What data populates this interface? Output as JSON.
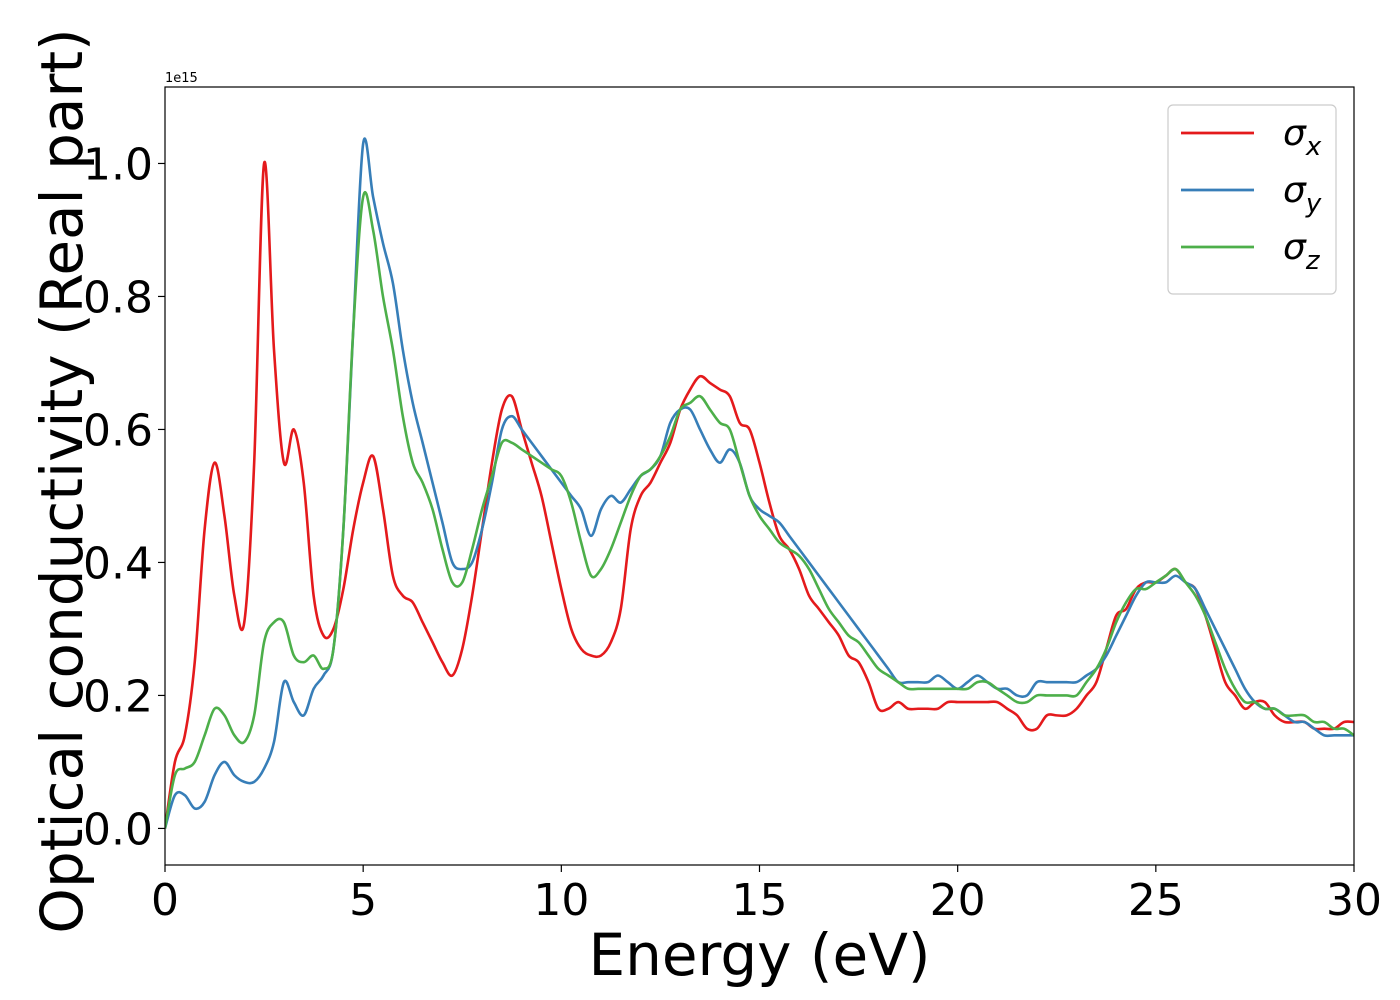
{
  "chart_data": {
    "type": "line",
    "xlabel": "Energy (eV)",
    "ylabel": "Optical conductivity (Real part)",
    "y_offset_label": "1e15",
    "xlim": [
      0,
      30
    ],
    "ylim": [
      -0.055,
      1.115
    ],
    "xticks": [
      0,
      5,
      10,
      15,
      20,
      25,
      30
    ],
    "yticks": [
      0.0,
      0.2,
      0.4,
      0.6,
      0.8,
      1.0
    ],
    "xtick_labels": [
      "0",
      "5",
      "10",
      "15",
      "20",
      "25",
      "30"
    ],
    "ytick_labels": [
      "0.0",
      "0.2",
      "0.4",
      "0.6",
      "0.8",
      "1.0"
    ],
    "grid": false,
    "legend_position": "top-right",
    "series": [
      {
        "name": "σx",
        "symbol": "σ",
        "subscript": "x",
        "color": "#e41a1c",
        "x": [
          0,
          0.25,
          0.5,
          0.75,
          1.0,
          1.25,
          1.5,
          1.75,
          2.0,
          2.25,
          2.5,
          2.75,
          3.0,
          3.25,
          3.5,
          3.75,
          4.0,
          4.25,
          4.5,
          4.75,
          5.0,
          5.25,
          5.5,
          5.75,
          6.0,
          6.25,
          6.5,
          6.75,
          7.0,
          7.25,
          7.5,
          7.75,
          8.0,
          8.25,
          8.5,
          8.75,
          9.0,
          9.25,
          9.5,
          9.75,
          10.0,
          10.25,
          10.5,
          10.75,
          11.0,
          11.25,
          11.5,
          11.75,
          12.0,
          12.25,
          12.5,
          12.75,
          13.0,
          13.25,
          13.5,
          13.75,
          14.0,
          14.25,
          14.5,
          14.75,
          15.0,
          15.25,
          15.5,
          15.75,
          16.0,
          16.25,
          16.5,
          16.75,
          17.0,
          17.25,
          17.5,
          17.75,
          18.0,
          18.25,
          18.5,
          18.75,
          19.0,
          19.25,
          19.5,
          19.75,
          20.0,
          20.25,
          20.5,
          20.75,
          21.0,
          21.25,
          21.5,
          21.75,
          22.0,
          22.25,
          22.5,
          22.75,
          23.0,
          23.25,
          23.5,
          23.75,
          24.0,
          24.25,
          24.5,
          24.75,
          25.0,
          25.25,
          25.5,
          25.75,
          26.0,
          26.25,
          26.5,
          26.75,
          27.0,
          27.25,
          27.5,
          27.75,
          28.0,
          28.25,
          28.5,
          28.75,
          29.0,
          29.25,
          29.5,
          29.75,
          30.0
        ],
        "values": [
          0.0,
          0.1,
          0.14,
          0.25,
          0.45,
          0.55,
          0.47,
          0.35,
          0.31,
          0.55,
          1.0,
          0.72,
          0.55,
          0.6,
          0.52,
          0.35,
          0.29,
          0.3,
          0.36,
          0.45,
          0.52,
          0.56,
          0.48,
          0.38,
          0.35,
          0.34,
          0.31,
          0.28,
          0.25,
          0.23,
          0.27,
          0.35,
          0.45,
          0.55,
          0.63,
          0.65,
          0.6,
          0.55,
          0.5,
          0.43,
          0.36,
          0.3,
          0.27,
          0.26,
          0.26,
          0.28,
          0.33,
          0.45,
          0.5,
          0.52,
          0.55,
          0.58,
          0.63,
          0.66,
          0.68,
          0.67,
          0.66,
          0.65,
          0.61,
          0.6,
          0.55,
          0.49,
          0.44,
          0.42,
          0.39,
          0.35,
          0.33,
          0.31,
          0.29,
          0.26,
          0.25,
          0.22,
          0.18,
          0.18,
          0.19,
          0.18,
          0.18,
          0.18,
          0.18,
          0.19,
          0.19,
          0.19,
          0.19,
          0.19,
          0.19,
          0.18,
          0.17,
          0.15,
          0.15,
          0.17,
          0.17,
          0.17,
          0.18,
          0.2,
          0.22,
          0.27,
          0.32,
          0.33,
          0.36,
          0.37,
          0.37,
          0.38,
          0.39,
          0.37,
          0.36,
          0.32,
          0.27,
          0.22,
          0.2,
          0.18,
          0.19,
          0.19,
          0.17,
          0.16,
          0.16,
          0.16,
          0.15,
          0.15,
          0.15,
          0.16,
          0.16
        ]
      },
      {
        "name": "σy",
        "symbol": "σ",
        "subscript": "y",
        "color": "#377eb8",
        "x": [
          0,
          0.25,
          0.5,
          0.75,
          1.0,
          1.25,
          1.5,
          1.75,
          2.0,
          2.25,
          2.5,
          2.75,
          3.0,
          3.25,
          3.5,
          3.75,
          4.0,
          4.25,
          4.5,
          4.75,
          5.0,
          5.25,
          5.5,
          5.75,
          6.0,
          6.25,
          6.5,
          6.75,
          7.0,
          7.25,
          7.5,
          7.75,
          8.0,
          8.25,
          8.5,
          8.75,
          9.0,
          9.25,
          9.5,
          9.75,
          10.0,
          10.25,
          10.5,
          10.75,
          11.0,
          11.25,
          11.5,
          11.75,
          12.0,
          12.25,
          12.5,
          12.75,
          13.0,
          13.25,
          13.5,
          13.75,
          14.0,
          14.25,
          14.5,
          14.75,
          15.0,
          15.25,
          15.5,
          15.75,
          16.0,
          16.25,
          16.5,
          16.75,
          17.0,
          17.25,
          17.5,
          17.75,
          18.0,
          18.25,
          18.5,
          18.75,
          19.0,
          19.25,
          19.5,
          19.75,
          20.0,
          20.25,
          20.5,
          20.75,
          21.0,
          21.25,
          21.5,
          21.75,
          22.0,
          22.25,
          22.5,
          22.75,
          23.0,
          23.25,
          23.5,
          23.75,
          24.0,
          24.25,
          24.5,
          24.75,
          25.0,
          25.25,
          25.5,
          25.75,
          26.0,
          26.25,
          26.5,
          26.75,
          27.0,
          27.25,
          27.5,
          27.75,
          28.0,
          28.25,
          28.5,
          28.75,
          29.0,
          29.25,
          29.5,
          29.75,
          30.0
        ],
        "values": [
          0.0,
          0.05,
          0.05,
          0.03,
          0.04,
          0.08,
          0.1,
          0.08,
          0.07,
          0.07,
          0.09,
          0.13,
          0.22,
          0.19,
          0.17,
          0.21,
          0.23,
          0.27,
          0.45,
          0.75,
          1.03,
          0.95,
          0.88,
          0.82,
          0.72,
          0.64,
          0.58,
          0.52,
          0.46,
          0.4,
          0.39,
          0.4,
          0.45,
          0.52,
          0.6,
          0.62,
          0.6,
          0.58,
          0.56,
          0.54,
          0.52,
          0.5,
          0.48,
          0.44,
          0.48,
          0.5,
          0.49,
          0.51,
          0.53,
          0.54,
          0.56,
          0.61,
          0.63,
          0.63,
          0.6,
          0.57,
          0.55,
          0.57,
          0.55,
          0.5,
          0.48,
          0.47,
          0.46,
          0.44,
          0.42,
          0.4,
          0.38,
          0.36,
          0.34,
          0.32,
          0.3,
          0.28,
          0.26,
          0.24,
          0.22,
          0.22,
          0.22,
          0.22,
          0.23,
          0.22,
          0.21,
          0.22,
          0.23,
          0.22,
          0.21,
          0.21,
          0.2,
          0.2,
          0.22,
          0.22,
          0.22,
          0.22,
          0.22,
          0.23,
          0.24,
          0.26,
          0.29,
          0.32,
          0.35,
          0.37,
          0.37,
          0.37,
          0.38,
          0.37,
          0.36,
          0.33,
          0.3,
          0.27,
          0.24,
          0.21,
          0.19,
          0.18,
          0.18,
          0.17,
          0.16,
          0.16,
          0.15,
          0.14,
          0.14,
          0.14,
          0.14
        ]
      },
      {
        "name": "σz",
        "symbol": "σ",
        "subscript": "z",
        "color": "#4daf4a",
        "x": [
          0,
          0.25,
          0.5,
          0.75,
          1.0,
          1.25,
          1.5,
          1.75,
          2.0,
          2.25,
          2.5,
          2.75,
          3.0,
          3.25,
          3.5,
          3.75,
          4.0,
          4.25,
          4.5,
          4.75,
          5.0,
          5.25,
          5.5,
          5.75,
          6.0,
          6.25,
          6.5,
          6.75,
          7.0,
          7.25,
          7.5,
          7.75,
          8.0,
          8.25,
          8.5,
          8.75,
          9.0,
          9.25,
          9.5,
          9.75,
          10.0,
          10.25,
          10.5,
          10.75,
          11.0,
          11.25,
          11.5,
          11.75,
          12.0,
          12.25,
          12.5,
          12.75,
          13.0,
          13.25,
          13.5,
          13.75,
          14.0,
          14.25,
          14.5,
          14.75,
          15.0,
          15.25,
          15.5,
          15.75,
          16.0,
          16.25,
          16.5,
          16.75,
          17.0,
          17.25,
          17.5,
          17.75,
          18.0,
          18.25,
          18.5,
          18.75,
          19.0,
          19.25,
          19.5,
          19.75,
          20.0,
          20.25,
          20.5,
          20.75,
          21.0,
          21.25,
          21.5,
          21.75,
          22.0,
          22.25,
          22.5,
          22.75,
          23.0,
          23.25,
          23.5,
          23.75,
          24.0,
          24.25,
          24.5,
          24.75,
          25.0,
          25.25,
          25.5,
          25.75,
          26.0,
          26.25,
          26.5,
          26.75,
          27.0,
          27.25,
          27.5,
          27.75,
          28.0,
          28.25,
          28.5,
          28.75,
          29.0,
          29.25,
          29.5,
          29.75,
          30.0
        ],
        "values": [
          0.0,
          0.08,
          0.09,
          0.1,
          0.14,
          0.18,
          0.17,
          0.14,
          0.13,
          0.17,
          0.28,
          0.31,
          0.31,
          0.26,
          0.25,
          0.26,
          0.24,
          0.27,
          0.45,
          0.75,
          0.95,
          0.9,
          0.8,
          0.72,
          0.62,
          0.55,
          0.52,
          0.48,
          0.42,
          0.37,
          0.37,
          0.42,
          0.48,
          0.53,
          0.58,
          0.58,
          0.57,
          0.56,
          0.55,
          0.54,
          0.53,
          0.49,
          0.43,
          0.38,
          0.39,
          0.42,
          0.46,
          0.5,
          0.53,
          0.54,
          0.56,
          0.59,
          0.63,
          0.64,
          0.65,
          0.63,
          0.61,
          0.6,
          0.55,
          0.5,
          0.47,
          0.45,
          0.43,
          0.42,
          0.41,
          0.39,
          0.36,
          0.33,
          0.31,
          0.29,
          0.28,
          0.26,
          0.24,
          0.23,
          0.22,
          0.21,
          0.21,
          0.21,
          0.21,
          0.21,
          0.21,
          0.21,
          0.22,
          0.22,
          0.21,
          0.2,
          0.19,
          0.19,
          0.2,
          0.2,
          0.2,
          0.2,
          0.2,
          0.22,
          0.24,
          0.27,
          0.31,
          0.34,
          0.36,
          0.36,
          0.37,
          0.38,
          0.39,
          0.37,
          0.35,
          0.32,
          0.28,
          0.24,
          0.21,
          0.19,
          0.19,
          0.18,
          0.18,
          0.17,
          0.17,
          0.17,
          0.16,
          0.16,
          0.15,
          0.15,
          0.14
        ]
      }
    ]
  }
}
